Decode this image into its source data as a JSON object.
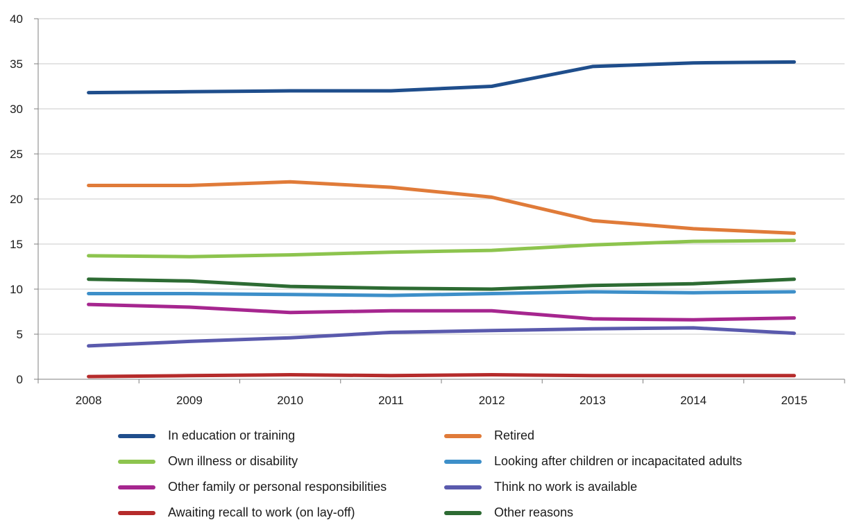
{
  "chart_data": {
    "type": "line",
    "title": "",
    "xlabel": "",
    "ylabel": "",
    "x": [
      "2008",
      "2009",
      "2010",
      "2011",
      "2012",
      "2013",
      "2014",
      "2015"
    ],
    "ylim": [
      0,
      40
    ],
    "yticks": [
      0,
      5,
      10,
      15,
      20,
      25,
      30,
      35,
      40
    ],
    "grid": true,
    "legend_position": "bottom",
    "series": [
      {
        "name": "In education or training",
        "color": "#1f4e8c",
        "values": [
          31.8,
          31.9,
          32.0,
          32.0,
          32.5,
          34.7,
          35.1,
          35.2
        ]
      },
      {
        "name": "Retired",
        "color": "#e07b39",
        "values": [
          21.5,
          21.5,
          21.9,
          21.3,
          20.2,
          17.6,
          16.7,
          16.2
        ]
      },
      {
        "name": "Own illness or disability",
        "color": "#8dc44e",
        "values": [
          13.7,
          13.6,
          13.8,
          14.1,
          14.3,
          14.9,
          15.3,
          15.4
        ]
      },
      {
        "name": "Looking after children or incapacitated adults",
        "color": "#3d8fc9",
        "values": [
          9.5,
          9.5,
          9.4,
          9.3,
          9.5,
          9.7,
          9.6,
          9.7
        ]
      },
      {
        "name": "Other family or personal responsibilities",
        "color": "#a6268f",
        "values": [
          8.3,
          8.0,
          7.4,
          7.6,
          7.6,
          6.7,
          6.6,
          6.8
        ]
      },
      {
        "name": "Think no work is available",
        "color": "#5a5aad",
        "values": [
          3.7,
          4.2,
          4.6,
          5.2,
          5.4,
          5.6,
          5.7,
          5.1
        ]
      },
      {
        "name": "Awaiting recall to work (on lay-off)",
        "color": "#b52b2b",
        "values": [
          0.3,
          0.4,
          0.5,
          0.4,
          0.5,
          0.4,
          0.4,
          0.4
        ]
      },
      {
        "name": "Other reasons",
        "color": "#2d6b33",
        "values": [
          11.1,
          10.9,
          10.3,
          10.1,
          10.0,
          10.4,
          10.6,
          11.1
        ]
      }
    ]
  }
}
